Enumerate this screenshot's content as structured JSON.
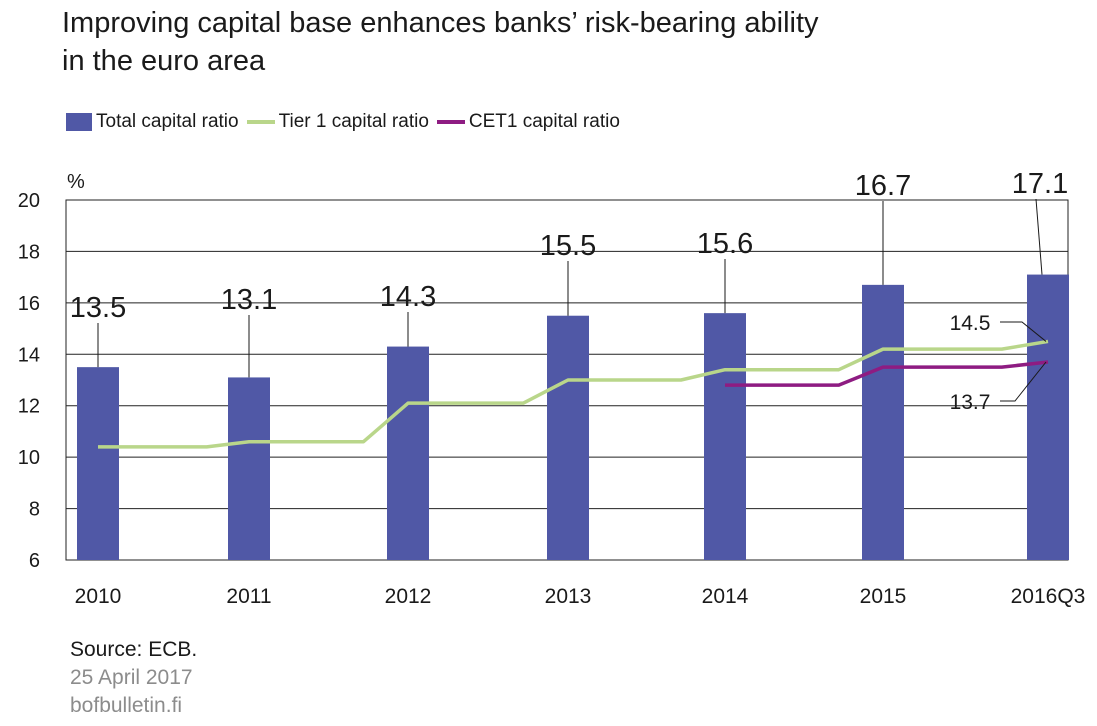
{
  "title": {
    "line1": "Improving capital base enhances banks’ risk-bearing ability",
    "line2": "in the euro area"
  },
  "footer": {
    "source": "Source: ECB.",
    "date": "25 April 2017",
    "site": "bofbulletin.fi"
  },
  "chart_data": {
    "type": "bar",
    "categories": [
      "2010",
      "2011",
      "2012",
      "2013",
      "2014",
      "2015",
      "2016Q3"
    ],
    "ylabel": "%",
    "ylim": [
      6,
      20
    ],
    "yticks": [
      "6",
      "8",
      "10",
      "12",
      "14",
      "16",
      "18",
      "20"
    ],
    "grid": true,
    "legend_position": "top",
    "colors": {
      "bar": "#5058a6",
      "tier1": "#b9d68a",
      "cet1": "#8e1c82",
      "grid": "#222222"
    },
    "series": [
      {
        "name": "Total capital ratio",
        "kind": "bar",
        "values": [
          13.5,
          13.1,
          14.3,
          15.5,
          15.6,
          16.7,
          17.1
        ],
        "labels": [
          "13.5",
          "13.1",
          "14.3",
          "15.5",
          "15.6",
          "16.7",
          "17.1"
        ]
      },
      {
        "name": "Tier 1 capital ratio",
        "kind": "line",
        "points": [
          {
            "x": "2010",
            "y": 10.4
          },
          {
            "x": "2010-2011",
            "y": 10.4
          },
          {
            "x": "2011",
            "y": 10.6
          },
          {
            "x": "2011-2012",
            "y": 10.6
          },
          {
            "x": "2012",
            "y": 12.1
          },
          {
            "x": "2012-2013",
            "y": 12.1
          },
          {
            "x": "2013",
            "y": 13.0
          },
          {
            "x": "2013-2014",
            "y": 13.0
          },
          {
            "x": "2014",
            "y": 13.4
          },
          {
            "x": "2014-2015",
            "y": 13.4
          },
          {
            "x": "2015",
            "y": 14.2
          },
          {
            "x": "2015-2016Q3",
            "y": 14.2
          },
          {
            "x": "2016Q3",
            "y": 14.5
          }
        ],
        "end_label": "14.5"
      },
      {
        "name": "CET1 capital ratio",
        "kind": "line",
        "points": [
          {
            "x": "2014",
            "y": 12.8
          },
          {
            "x": "2014-2015",
            "y": 12.8
          },
          {
            "x": "2015",
            "y": 13.5
          },
          {
            "x": "2015-2016Q3",
            "y": 13.5
          },
          {
            "x": "2016Q3",
            "y": 13.7
          }
        ],
        "end_label": "13.7"
      }
    ]
  }
}
